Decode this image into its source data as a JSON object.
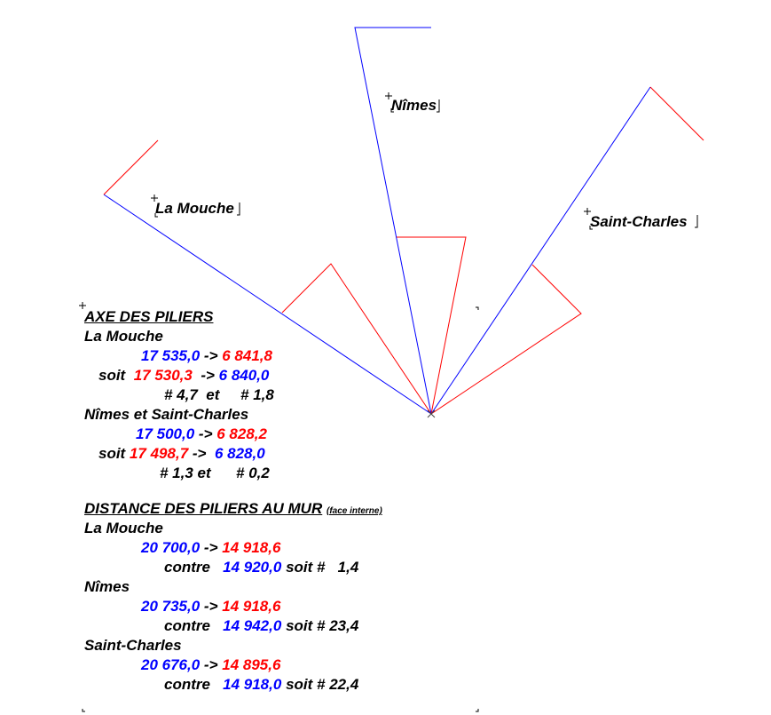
{
  "colors": {
    "blue": "#0000ff",
    "red": "#ff0000",
    "text": "#000000"
  },
  "diagram_labels": {
    "la_mouche": "La Mouche",
    "nimes": "Nîmes",
    "saint_charles": "Saint-Charles"
  },
  "axe": {
    "title": "AXE DES PILIERS",
    "la_mouche": {
      "label": "La Mouche",
      "v1": "17 535,0",
      "arrow": "->",
      "v2": "6 841,8",
      "soit": "soit",
      "v3": "17 530,3",
      "v4": "6 840,0",
      "d1": "# 4,7",
      "et": "et",
      "d2": "# 1,8"
    },
    "nimes_sc": {
      "label": "Nîmes et Saint-Charles",
      "v1": "17 500,0",
      "arrow": "->",
      "v2": "6 828,2",
      "soit": "soit",
      "v3": "17 498,7",
      "v4": "6 828,0",
      "d1": "# 1,3",
      "et": "et",
      "d2": "# 0,2"
    }
  },
  "distance": {
    "title": "DISTANCE DES PILIERS AU MUR",
    "note": "(face interne)",
    "items": [
      {
        "label": "La Mouche",
        "v1": "20 700,0",
        "arrow": "->",
        "v2": "14 918,6",
        "contre": "contre",
        "v3": "14 920,0",
        "soit": "soit #",
        "d": "1,4"
      },
      {
        "label": "Nîmes",
        "v1": "20 735,0",
        "arrow": "->",
        "v2": "14 918,6",
        "contre": "contre",
        "v3": "14 942,0",
        "soit": "soit #",
        "d": "23,4"
      },
      {
        "label": "Saint-Charles",
        "v1": "20 676,0",
        "arrow": "->",
        "v2": "14 895,6",
        "contre": "contre",
        "v3": "14 918,0",
        "soit": "soit #",
        "d": "22,4"
      }
    ]
  }
}
